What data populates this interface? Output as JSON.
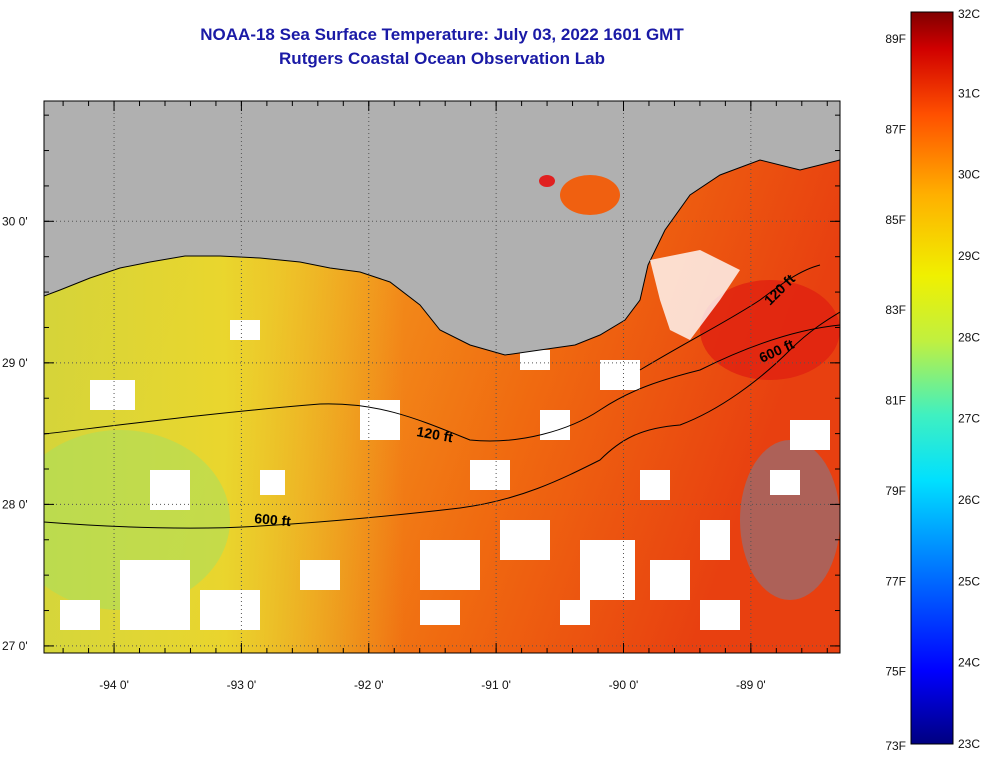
{
  "header": {
    "title": "NOAA-18 Sea Surface Temperature:  July 03, 2022 1601 GMT",
    "subtitle": "Rutgers Coastal Ocean Observation Lab"
  },
  "axes": {
    "lon_range": [
      -94.55,
      -88.3
    ],
    "lat_range": [
      26.95,
      30.85
    ],
    "lon_ticks": [
      {
        "value": -94,
        "label": "-94 0'"
      },
      {
        "value": -93,
        "label": "-93 0'"
      },
      {
        "value": -92,
        "label": "-92 0'"
      },
      {
        "value": -91,
        "label": "-91 0'"
      },
      {
        "value": -90,
        "label": "-90 0'"
      },
      {
        "value": -89,
        "label": "-89 0'"
      }
    ],
    "lat_ticks": [
      {
        "value": 30,
        "label": "30 0'"
      },
      {
        "value": 29,
        "label": "29 0'"
      },
      {
        "value": 28,
        "label": "28 0'"
      },
      {
        "value": 27,
        "label": "27 0'"
      }
    ],
    "grid": "dotted"
  },
  "contours": [
    {
      "label": "120 ft",
      "depth_ft": 120
    },
    {
      "label": "600 ft",
      "depth_ft": 600
    },
    {
      "label": "120 ft",
      "depth_ft": 120
    },
    {
      "label": "600 ft",
      "depth_ft": 600
    }
  ],
  "colorbar": {
    "celsius_labels": [
      "32C",
      "31C",
      "30C",
      "29C",
      "28C",
      "27C",
      "26C",
      "25C",
      "24C",
      "23C"
    ],
    "fahrenheit_labels": [
      "89F",
      "87F",
      "85F",
      "83F",
      "81F",
      "79F",
      "77F",
      "75F",
      "73F"
    ],
    "range_c": [
      23,
      32
    ],
    "colors": [
      "#000080",
      "#0000ff",
      "#0080ff",
      "#00e0ff",
      "#40f0c0",
      "#a0f060",
      "#f0f000",
      "#ffc000",
      "#ff8000",
      "#ff3000",
      "#d00000",
      "#800000"
    ]
  },
  "colors": {
    "land": "#b0b0b0",
    "cloud": "#ffffff",
    "title": "#1a1aa6"
  }
}
